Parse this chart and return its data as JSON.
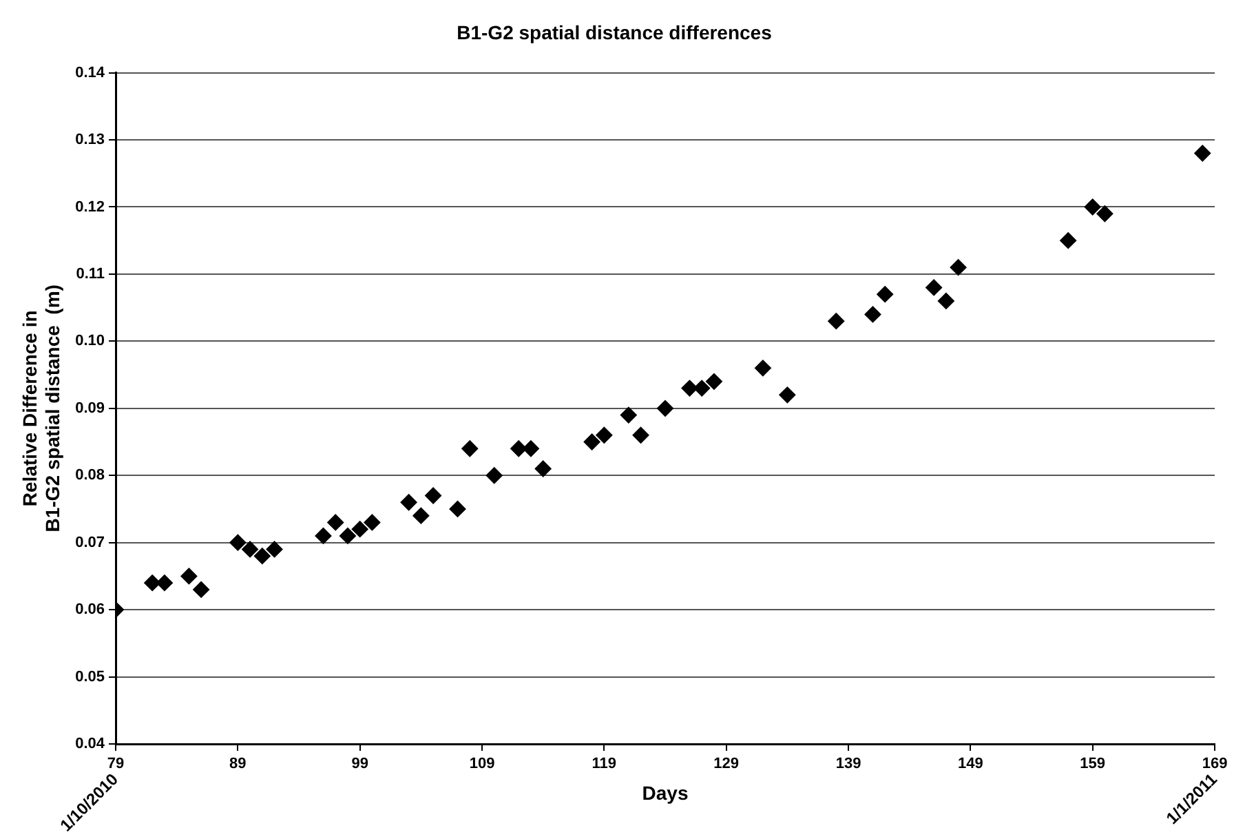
{
  "chart_data": {
    "type": "scatter",
    "title": "B1-G2 spatial distance differences",
    "xlabel": "Days",
    "ylabel": "Relative Difference in\nB1-G2 spatial distance  (m)",
    "x": [
      79,
      82,
      83,
      85,
      86,
      89,
      90,
      91,
      92,
      96,
      97,
      98,
      99,
      100,
      103,
      104,
      105,
      107,
      108,
      110,
      112,
      113,
      114,
      118,
      119,
      121,
      122,
      124,
      126,
      127,
      128,
      132,
      134,
      138,
      141,
      142,
      146,
      147,
      148,
      157,
      159,
      160,
      168
    ],
    "series": [
      {
        "color": "#000000",
        "values": [
          0.06,
          0.064,
          0.064,
          0.065,
          0.063,
          0.07,
          0.069,
          0.068,
          0.069,
          0.071,
          0.073,
          0.071,
          0.072,
          0.073,
          0.076,
          0.074,
          0.077,
          0.075,
          0.084,
          0.08,
          0.084,
          0.084,
          0.081,
          0.085,
          0.086,
          0.089,
          0.086,
          0.09,
          0.093,
          0.093,
          0.094,
          0.096,
          0.092,
          0.103,
          0.104,
          0.107,
          0.108,
          0.106,
          0.111,
          0.115,
          0.12,
          0.119,
          0.128
        ]
      }
    ],
    "xlim": [
      79,
      169
    ],
    "xticks": [
      79,
      89,
      99,
      109,
      119,
      129,
      139,
      149,
      159,
      169
    ],
    "ylim": [
      0.04,
      0.14
    ],
    "yticks": [
      0.04,
      0.05,
      0.06,
      0.07,
      0.08,
      0.09,
      {
        "value": 0.1,
        "label": "0.10"
      },
      0.11,
      0.12,
      0.13,
      0.14
    ],
    "grid": "y",
    "legend": false,
    "marker": "diamond",
    "annotations": [
      "1/10/2010",
      "1/1/2011"
    ]
  }
}
